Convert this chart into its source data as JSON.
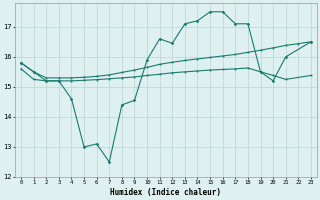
{
  "xlabel": "Humidex (Indice chaleur)",
  "x": [
    0,
    1,
    2,
    3,
    4,
    5,
    6,
    7,
    8,
    9,
    10,
    11,
    12,
    13,
    14,
    15,
    16,
    17,
    18,
    19,
    20,
    21,
    22,
    23
  ],
  "line_main": [
    15.8,
    15.5,
    15.2,
    15.2,
    14.6,
    13.0,
    13.1,
    12.5,
    14.4,
    14.55,
    15.9,
    16.6,
    16.45,
    17.1,
    17.2,
    17.5,
    17.5,
    17.1,
    17.1,
    15.5,
    15.2,
    16.0,
    null,
    16.5
  ],
  "line_upper": [
    15.8,
    15.5,
    15.3,
    15.3,
    15.3,
    15.32,
    15.35,
    15.4,
    15.48,
    15.56,
    15.65,
    15.75,
    15.82,
    15.88,
    15.93,
    15.98,
    16.03,
    16.08,
    16.15,
    16.22,
    16.3,
    16.38,
    16.44,
    16.5
  ],
  "line_lower": [
    15.6,
    15.25,
    15.2,
    15.2,
    15.2,
    15.22,
    15.24,
    15.27,
    15.3,
    15.33,
    15.38,
    15.42,
    15.47,
    15.5,
    15.53,
    15.56,
    15.58,
    15.6,
    15.63,
    15.5,
    15.38,
    15.25,
    null,
    15.38
  ],
  "line_color": "#1a7a6e",
  "bg_color": "#dff0f0",
  "grid_color": "#b8d4d4",
  "ylim": [
    12,
    17.8
  ],
  "xlim": [
    -0.5,
    23.5
  ],
  "yticks": [
    12,
    13,
    14,
    15,
    16,
    17
  ],
  "xticks": [
    0,
    1,
    2,
    3,
    4,
    5,
    6,
    7,
    8,
    9,
    10,
    11,
    12,
    13,
    14,
    15,
    16,
    17,
    18,
    19,
    20,
    21,
    22,
    23
  ]
}
